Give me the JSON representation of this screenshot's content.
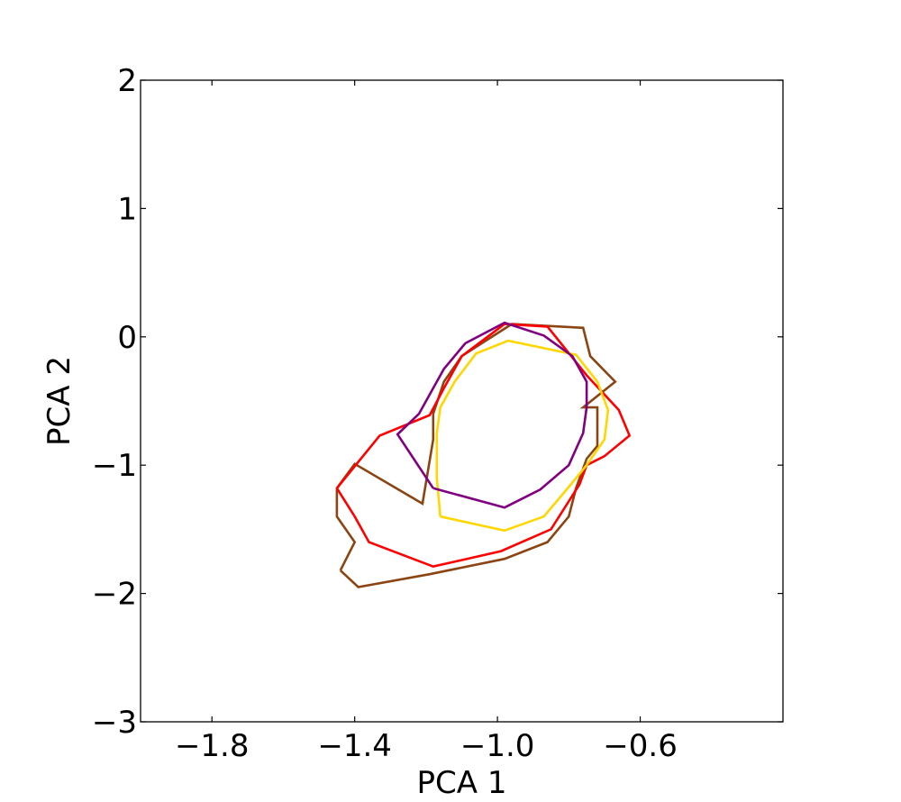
{
  "chart_data": {
    "type": "line",
    "title": "",
    "xlabel": "PCA 1",
    "ylabel": "PCA 2",
    "xlim": [
      -2.0,
      -0.2
    ],
    "ylim": [
      -3,
      2
    ],
    "xticks": [
      -1.8,
      -1.4,
      -1.0,
      -0.6
    ],
    "xtick_labels": [
      "−1.8",
      "−1.4",
      "−1.0",
      "−0.6"
    ],
    "yticks": [
      -3,
      -2,
      -1,
      0,
      1,
      2
    ],
    "ytick_labels": [
      "−3",
      "−2",
      "−1",
      "0",
      "1",
      "2"
    ],
    "grid": false,
    "legend": false,
    "series": [
      {
        "color": "#8B4513",
        "points": [
          [
            -1.44,
            -1.82
          ],
          [
            -1.39,
            -1.95
          ],
          [
            -1.19,
            -1.85
          ],
          [
            -0.98,
            -1.73
          ],
          [
            -0.86,
            -1.6
          ],
          [
            -0.8,
            -1.4
          ],
          [
            -0.78,
            -1.18
          ],
          [
            -0.75,
            -0.95
          ],
          [
            -0.72,
            -0.85
          ],
          [
            -0.72,
            -0.55
          ],
          [
            -0.76,
            -0.55
          ],
          [
            -0.67,
            -0.35
          ],
          [
            -0.74,
            -0.15
          ],
          [
            -0.76,
            0.07
          ],
          [
            -0.96,
            0.1
          ],
          [
            -1.1,
            -0.15
          ],
          [
            -1.15,
            -0.35
          ],
          [
            -1.18,
            -0.6
          ],
          [
            -1.18,
            -0.8
          ],
          [
            -1.21,
            -1.3
          ],
          [
            -1.4,
            -0.99
          ],
          [
            -1.45,
            -1.18
          ],
          [
            -1.45,
            -1.4
          ],
          [
            -1.4,
            -1.6
          ],
          [
            -1.44,
            -1.82
          ]
        ]
      },
      {
        "color": "#FF0000",
        "points": [
          [
            -1.45,
            -1.18
          ],
          [
            -1.4,
            -1.4
          ],
          [
            -1.36,
            -1.6
          ],
          [
            -1.18,
            -1.79
          ],
          [
            -0.99,
            -1.67
          ],
          [
            -0.85,
            -1.5
          ],
          [
            -0.77,
            -1.15
          ],
          [
            -0.75,
            -1.0
          ],
          [
            -0.7,
            -0.93
          ],
          [
            -0.63,
            -0.77
          ],
          [
            -0.66,
            -0.57
          ],
          [
            -0.75,
            -0.3
          ],
          [
            -0.86,
            0.08
          ],
          [
            -0.98,
            0.1
          ],
          [
            -1.1,
            -0.15
          ],
          [
            -1.15,
            -0.4
          ],
          [
            -1.19,
            -0.61
          ],
          [
            -1.33,
            -0.77
          ],
          [
            -1.45,
            -1.18
          ]
        ]
      },
      {
        "color": "#FFD700",
        "points": [
          [
            -1.16,
            -1.4
          ],
          [
            -0.98,
            -1.51
          ],
          [
            -0.87,
            -1.4
          ],
          [
            -0.8,
            -1.17
          ],
          [
            -0.75,
            -1.0
          ],
          [
            -0.7,
            -0.8
          ],
          [
            -0.69,
            -0.57
          ],
          [
            -0.72,
            -0.35
          ],
          [
            -0.78,
            -0.14
          ],
          [
            -0.97,
            -0.03
          ],
          [
            -1.06,
            -0.13
          ],
          [
            -1.12,
            -0.35
          ],
          [
            -1.16,
            -0.55
          ],
          [
            -1.17,
            -0.75
          ],
          [
            -1.17,
            -1.1
          ],
          [
            -1.16,
            -1.4
          ]
        ]
      },
      {
        "color": "#800080",
        "points": [
          [
            -1.18,
            -1.18
          ],
          [
            -0.98,
            -1.33
          ],
          [
            -0.88,
            -1.19
          ],
          [
            -0.8,
            -1.0
          ],
          [
            -0.76,
            -0.75
          ],
          [
            -0.75,
            -0.55
          ],
          [
            -0.75,
            -0.35
          ],
          [
            -0.79,
            -0.15
          ],
          [
            -0.87,
            0.01
          ],
          [
            -0.98,
            0.11
          ],
          [
            -1.09,
            -0.05
          ],
          [
            -1.15,
            -0.25
          ],
          [
            -1.18,
            -0.4
          ],
          [
            -1.2,
            -0.5
          ],
          [
            -1.22,
            -0.6
          ],
          [
            -1.28,
            -0.76
          ],
          [
            -1.18,
            -1.18
          ]
        ]
      }
    ]
  }
}
